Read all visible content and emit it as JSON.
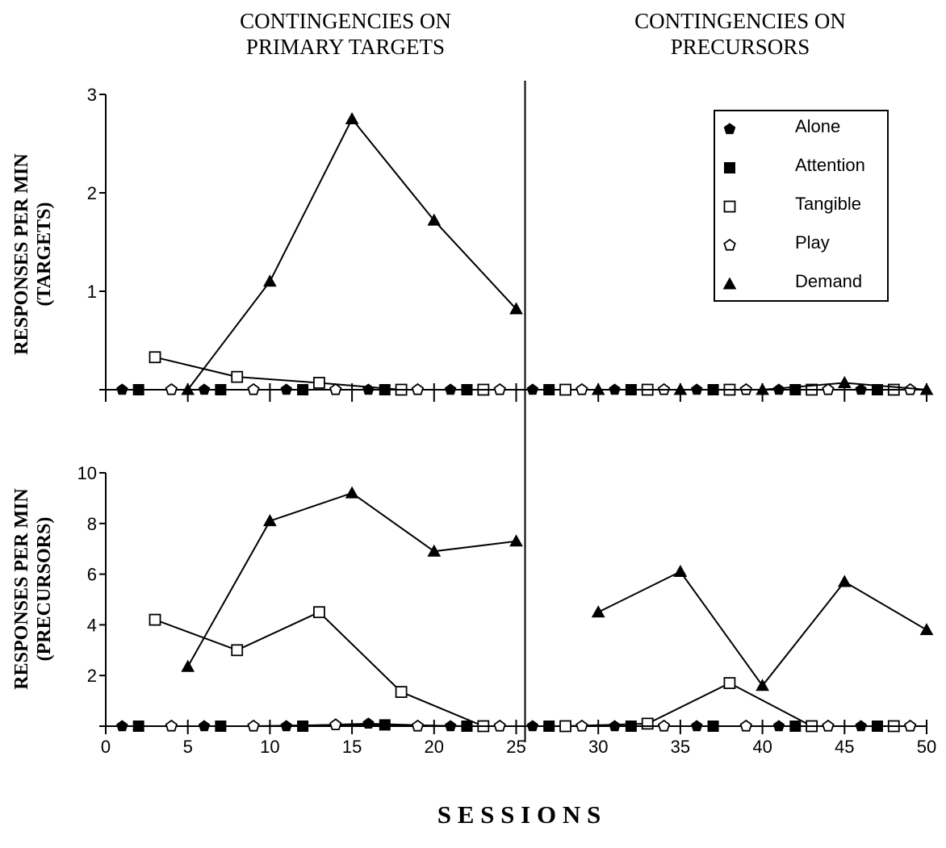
{
  "chart_data": {
    "type": "line",
    "phase_labels": [
      [
        "CONTINGENCIES ON",
        "PRIMARY TARGETS"
      ],
      [
        "CONTINGENCIES ON",
        "PRECURSORS"
      ]
    ],
    "xlabel": "S E S S I O N S",
    "xlim": [
      0,
      50
    ],
    "x_ticks": [
      0,
      5,
      10,
      15,
      20,
      25,
      30,
      35,
      40,
      45,
      50
    ],
    "phase_change_after_session": 25,
    "legend": {
      "placement": "top-right of upper panel",
      "entries": [
        "Alone",
        "Attention",
        "Tangible",
        "Play",
        "Demand"
      ]
    },
    "panels": [
      {
        "ylabel": [
          "RESPONSES PER MIN",
          "(TARGETS)"
        ],
        "ylim": [
          0,
          3
        ],
        "y_ticks": [
          1,
          2,
          3
        ],
        "series": [
          {
            "name": "Alone",
            "marker": "filled-pentagon",
            "points": [
              [
                1,
                0
              ],
              [
                6,
                0
              ],
              [
                11,
                0
              ],
              [
                16,
                0
              ],
              [
                21,
                0
              ],
              [
                26,
                0
              ],
              [
                31,
                0
              ],
              [
                36,
                0
              ],
              [
                41,
                0
              ],
              [
                46,
                0
              ]
            ]
          },
          {
            "name": "Attention",
            "marker": "filled-square",
            "points": [
              [
                2,
                0
              ],
              [
                7,
                0
              ],
              [
                12,
                0
              ],
              [
                17,
                0
              ],
              [
                22,
                0
              ],
              [
                27,
                0
              ],
              [
                32,
                0
              ],
              [
                37,
                0
              ],
              [
                42,
                0
              ],
              [
                47,
                0
              ]
            ]
          },
          {
            "name": "Tangible",
            "marker": "open-square",
            "points": [
              [
                3,
                0.33
              ],
              [
                8,
                0.13
              ],
              [
                13,
                0.07
              ],
              [
                18,
                0
              ],
              [
                23,
                0
              ],
              [
                28,
                0
              ],
              [
                33,
                0
              ],
              [
                38,
                0
              ],
              [
                43,
                0
              ],
              [
                48,
                0
              ]
            ]
          },
          {
            "name": "Play",
            "marker": "open-pentagon",
            "points": [
              [
                4,
                0
              ],
              [
                9,
                0
              ],
              [
                14,
                0
              ],
              [
                19,
                0
              ],
              [
                24,
                0
              ],
              [
                29,
                0
              ],
              [
                34,
                0
              ],
              [
                39,
                0
              ],
              [
                44,
                0
              ],
              [
                49,
                0
              ]
            ]
          },
          {
            "name": "Demand",
            "marker": "filled-triangle",
            "points": [
              [
                5,
                0
              ],
              [
                10,
                1.1
              ],
              [
                15,
                2.75
              ],
              [
                20,
                1.72
              ],
              [
                25,
                0.82
              ],
              [
                30,
                0
              ],
              [
                35,
                0
              ],
              [
                40,
                0
              ],
              [
                45,
                0.07
              ],
              [
                50,
                0
              ]
            ]
          }
        ]
      },
      {
        "ylabel": [
          "RESPONSES PER MIN",
          "(PRECURSORS)"
        ],
        "ylim": [
          0,
          10
        ],
        "y_ticks": [
          2,
          4,
          6,
          8,
          10
        ],
        "series": [
          {
            "name": "Alone",
            "marker": "filled-pentagon",
            "points": [
              [
                1,
                0
              ],
              [
                6,
                0
              ],
              [
                11,
                0
              ],
              [
                16,
                0.1
              ],
              [
                21,
                0
              ],
              [
                26,
                0
              ],
              [
                31,
                0
              ],
              [
                36,
                0
              ],
              [
                41,
                0
              ],
              [
                46,
                0
              ]
            ]
          },
          {
            "name": "Attention",
            "marker": "filled-square",
            "points": [
              [
                2,
                0
              ],
              [
                7,
                0
              ],
              [
                12,
                0
              ],
              [
                17,
                0.05
              ],
              [
                22,
                0
              ],
              [
                27,
                0
              ],
              [
                32,
                0
              ],
              [
                37,
                0
              ],
              [
                42,
                0
              ],
              [
                47,
                0
              ]
            ]
          },
          {
            "name": "Tangible",
            "marker": "open-square",
            "points": [
              [
                3,
                4.2
              ],
              [
                8,
                3.0
              ],
              [
                13,
                4.5
              ],
              [
                18,
                1.35
              ],
              [
                23,
                0
              ],
              [
                28,
                0
              ],
              [
                33,
                0.1
              ],
              [
                38,
                1.7
              ],
              [
                43,
                0
              ],
              [
                48,
                0
              ]
            ]
          },
          {
            "name": "Play",
            "marker": "open-pentagon",
            "points": [
              [
                4,
                0
              ],
              [
                9,
                0
              ],
              [
                14,
                0.05
              ],
              [
                19,
                0
              ],
              [
                24,
                0
              ],
              [
                29,
                0
              ],
              [
                34,
                0
              ],
              [
                39,
                0
              ],
              [
                44,
                0
              ],
              [
                49,
                0
              ]
            ]
          },
          {
            "name": "Demand",
            "marker": "filled-triangle",
            "points": [
              [
                5,
                2.35
              ],
              [
                10,
                8.1
              ],
              [
                15,
                9.2
              ],
              [
                20,
                6.9
              ],
              [
                25,
                7.3
              ],
              [
                30,
                4.5
              ],
              [
                35,
                6.1
              ],
              [
                40,
                1.6
              ],
              [
                45,
                5.7
              ],
              [
                50,
                3.8
              ]
            ]
          }
        ]
      }
    ]
  }
}
